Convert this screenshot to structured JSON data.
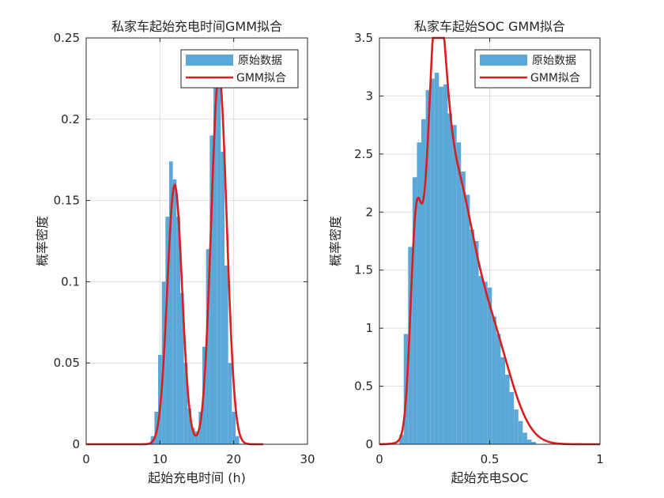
{
  "colors": {
    "histogram": "#5ba8d8",
    "fit_line": "#d81e1e",
    "grid": "#dcdcdc",
    "axis": "#262626"
  },
  "chart_data": [
    {
      "type": "bar",
      "title": "私家车起始充电时间GMM拟合",
      "xlabel": "起始充电时间 (h)",
      "ylabel": "概率密度",
      "xlim": [
        0,
        30
      ],
      "ylim": [
        0,
        0.25
      ],
      "xticks": [
        0,
        10,
        20,
        30
      ],
      "yticks": [
        0,
        0.05,
        0.1,
        0.15,
        0.2,
        0.25
      ],
      "xtick_labels": [
        "0",
        "10",
        "20",
        "30"
      ],
      "ytick_labels": [
        "0",
        "0.05",
        "0.1",
        "0.15",
        "0.2",
        "0.25"
      ],
      "grid": true,
      "legend": {
        "position": "top-right",
        "entries": [
          "原始数据",
          "GMM拟合"
        ]
      },
      "bin_width": 0.5,
      "histogram": {
        "name": "原始数据",
        "x": [
          9.0,
          9.5,
          10.0,
          10.5,
          11.0,
          11.5,
          12.0,
          12.5,
          13.0,
          13.5,
          14.0,
          14.5,
          15.0,
          15.5,
          16.0,
          16.5,
          17.0,
          17.5,
          18.0,
          18.5,
          19.0,
          19.5,
          20.0,
          20.5
        ],
        "values": [
          0.005,
          0.02,
          0.055,
          0.1,
          0.14,
          0.174,
          0.163,
          0.14,
          0.093,
          0.05,
          0.022,
          0.01,
          0.008,
          0.02,
          0.06,
          0.12,
          0.19,
          0.235,
          0.235,
          0.18,
          0.11,
          0.05,
          0.02,
          0.005
        ]
      },
      "gmm": {
        "name": "GMM拟合",
        "components": [
          {
            "weight": 0.4,
            "mean": 12.0,
            "std": 1.0
          },
          {
            "weight": 0.6,
            "mean": 18.0,
            "std": 1.05
          }
        ],
        "x_range": [
          0,
          24
        ]
      }
    },
    {
      "type": "bar",
      "title": "私家车起始SOC GMM拟合",
      "xlabel": "起始充电SOC",
      "ylabel": "概率密度",
      "xlim": [
        0,
        1
      ],
      "ylim": [
        0,
        3.5
      ],
      "xticks": [
        0,
        0.5,
        1
      ],
      "yticks": [
        0,
        0.5,
        1,
        1.5,
        2,
        2.5,
        3,
        3.5
      ],
      "xtick_labels": [
        "0",
        "0.5",
        "1"
      ],
      "ytick_labels": [
        "0",
        "0.5",
        "1",
        "1.5",
        "2",
        "2.5",
        "3",
        "3.5"
      ],
      "grid": true,
      "legend": {
        "position": "top-right",
        "entries": [
          "原始数据",
          "GMM拟合"
        ]
      },
      "bin_width": 0.02,
      "histogram": {
        "name": "原始数据",
        "x": [
          0.1,
          0.12,
          0.14,
          0.16,
          0.18,
          0.2,
          0.22,
          0.24,
          0.26,
          0.28,
          0.3,
          0.32,
          0.34,
          0.36,
          0.38,
          0.4,
          0.42,
          0.44,
          0.46,
          0.48,
          0.5,
          0.52,
          0.54,
          0.56,
          0.58,
          0.6,
          0.62,
          0.64,
          0.66,
          0.68,
          0.7
        ],
        "values": [
          0.08,
          0.95,
          1.7,
          2.3,
          2.6,
          2.8,
          3.05,
          3.15,
          3.2,
          3.08,
          3.1,
          2.85,
          2.75,
          2.6,
          2.35,
          2.15,
          1.85,
          1.75,
          1.45,
          1.4,
          1.35,
          1.1,
          0.95,
          0.75,
          0.6,
          0.45,
          0.3,
          0.2,
          0.1,
          0.04,
          0.02
        ]
      },
      "gmm": {
        "name": "GMM拟合",
        "components": [
          {
            "weight": 0.1,
            "mean": 0.165,
            "std": 0.025
          },
          {
            "weight": 0.25,
            "mean": 0.255,
            "std": 0.04
          },
          {
            "weight": 0.4,
            "mean": 0.33,
            "std": 0.08
          },
          {
            "weight": 0.25,
            "mean": 0.49,
            "std": 0.1
          }
        ],
        "x_range": [
          0,
          1
        ]
      }
    }
  ]
}
